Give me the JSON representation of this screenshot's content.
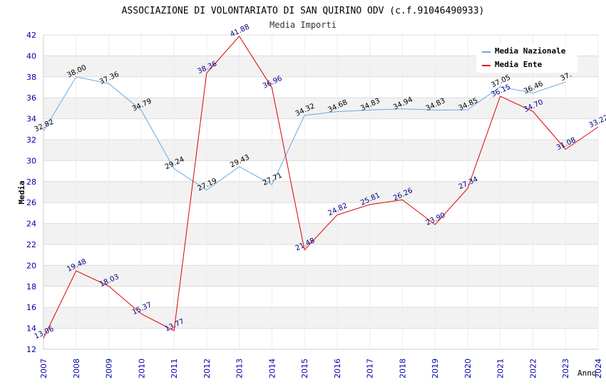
{
  "chart_data": {
    "type": "line",
    "title": "ASSOCIAZIONE DI VOLONTARIATO DI SAN QUIRINO ODV (c.f.91046490933)",
    "subtitle": "Media Importi",
    "xlabel": "Anno",
    "ylabel": "Media",
    "ylim": [
      12,
      42
    ],
    "y_ticks": [
      12,
      14,
      16,
      18,
      20,
      22,
      24,
      26,
      28,
      30,
      32,
      34,
      36,
      38,
      40,
      42
    ],
    "x": [
      "2007",
      "2008",
      "2009",
      "2010",
      "2011",
      "2012",
      "2013",
      "2014",
      "2015",
      "2016",
      "2017",
      "2018",
      "2019",
      "2020",
      "2021",
      "2022",
      "2023",
      "2024"
    ],
    "legend_position": "top-right",
    "series": [
      {
        "name": "Media Nazionale",
        "color": "#6aa8e6",
        "label_color": "#000000",
        "values": [
          32.82,
          38.0,
          37.36,
          34.79,
          29.24,
          27.19,
          29.43,
          27.71,
          34.32,
          34.68,
          34.83,
          34.94,
          34.83,
          34.85,
          37.05,
          36.46,
          37.5,
          null
        ],
        "labels": [
          "32.82",
          "38.00",
          "37.36",
          "34.79",
          "29.24",
          "27.19",
          "29.43",
          "27.71",
          "34.32",
          "34.68",
          "34.83",
          "34.94",
          "34.83",
          "34.85",
          "37.05",
          "36.46",
          "37.",
          ""
        ]
      },
      {
        "name": "Media Ente",
        "color": "#dd0000",
        "label_color": "#000080",
        "values": [
          13.06,
          19.48,
          18.03,
          15.37,
          13.77,
          38.36,
          41.88,
          36.96,
          21.48,
          24.82,
          25.81,
          26.26,
          23.9,
          27.34,
          36.15,
          34.7,
          31.08,
          33.22
        ],
        "labels": [
          "13.06",
          "19.48",
          "18.03",
          "15.37",
          "13.77",
          "38.36",
          "41.88",
          "36.96",
          "21.48",
          "24.82",
          "25.81",
          "26.26",
          "23.90",
          "27.34",
          "36.15",
          "34.70",
          "31.08",
          "33.22"
        ]
      }
    ]
  }
}
